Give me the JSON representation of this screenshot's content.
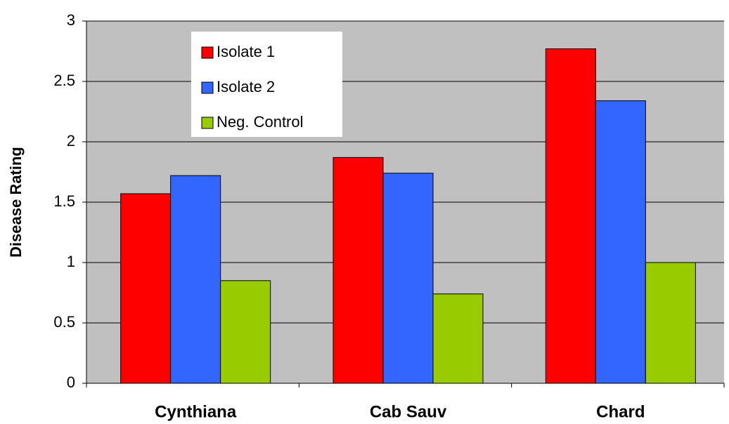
{
  "chart_data": {
    "type": "bar",
    "y_label": "Disease Rating",
    "categories": [
      "Cynthiana",
      "Cab Sauv",
      "Chard"
    ],
    "series": [
      {
        "name": "Isolate 1",
        "color": "#ff0000",
        "values": [
          1.57,
          1.87,
          2.77
        ]
      },
      {
        "name": "Isolate 2",
        "color": "#3366ff",
        "values": [
          1.72,
          1.74,
          2.34
        ]
      },
      {
        "name": "Neg. Control",
        "color": "#99cc00",
        "values": [
          0.85,
          0.74,
          1.0
        ]
      }
    ],
    "ylim": [
      0,
      3
    ],
    "yticks": [
      0,
      0.5,
      1,
      1.5,
      2,
      2.5,
      3
    ],
    "grid": true,
    "legend_position": "top-left",
    "plot_background": "#c0c0c0"
  }
}
